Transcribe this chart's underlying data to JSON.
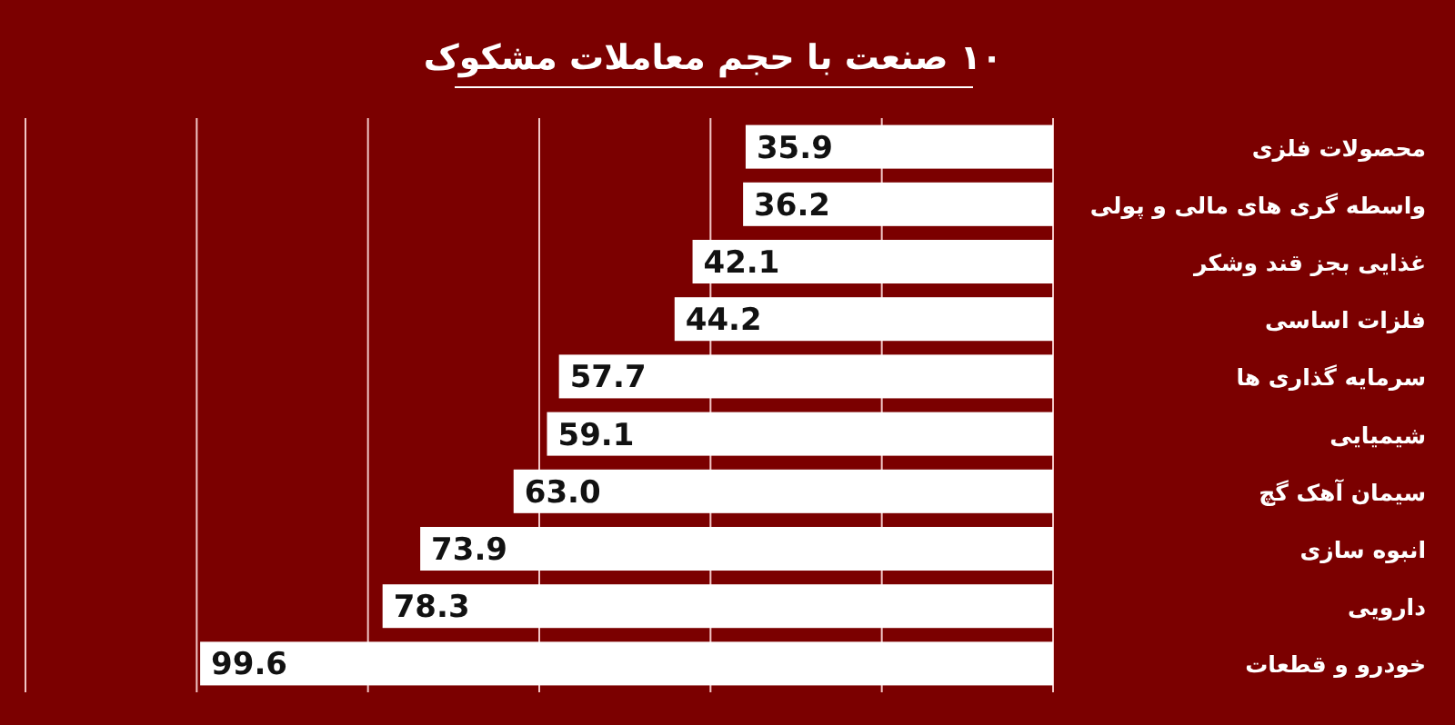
{
  "chart_data": {
    "type": "bar",
    "orientation": "horizontal",
    "title": "۱۰ صنعت با حجم معاملات مشکوک",
    "categories": [
      "محصولات فلزی",
      "واسطه گری های مالی و پولی",
      "غذایی بجز قند وشکر",
      "فلزات اساسی",
      "سرمایه گذاری ها",
      "شیمیایی",
      "سیمان آهک گچ",
      "انبوه سازی",
      "دارویی",
      "خودرو و قطعات"
    ],
    "values": [
      35.9,
      36.2,
      42.1,
      44.2,
      57.7,
      59.1,
      63.0,
      73.9,
      78.3,
      99.6
    ],
    "value_labels": [
      "35.9",
      "36.2",
      "42.1",
      "44.2",
      "57.7",
      "59.1",
      "63.0",
      "73.9",
      "78.3",
      "99.6"
    ],
    "color": "#ffffff",
    "xlim": [
      120,
      0
    ],
    "xticks": [
      {
        "value": 0,
        "label": null
      },
      {
        "value": 20,
        "label": null
      },
      {
        "value": 40,
        "label": null
      },
      {
        "value": 60,
        "label": null
      },
      {
        "value": 80,
        "label": null
      },
      {
        "value": 100,
        "label": null
      },
      {
        "value": 120,
        "label": null
      }
    ],
    "grid": "x",
    "tick_labels": "y"
  }
}
